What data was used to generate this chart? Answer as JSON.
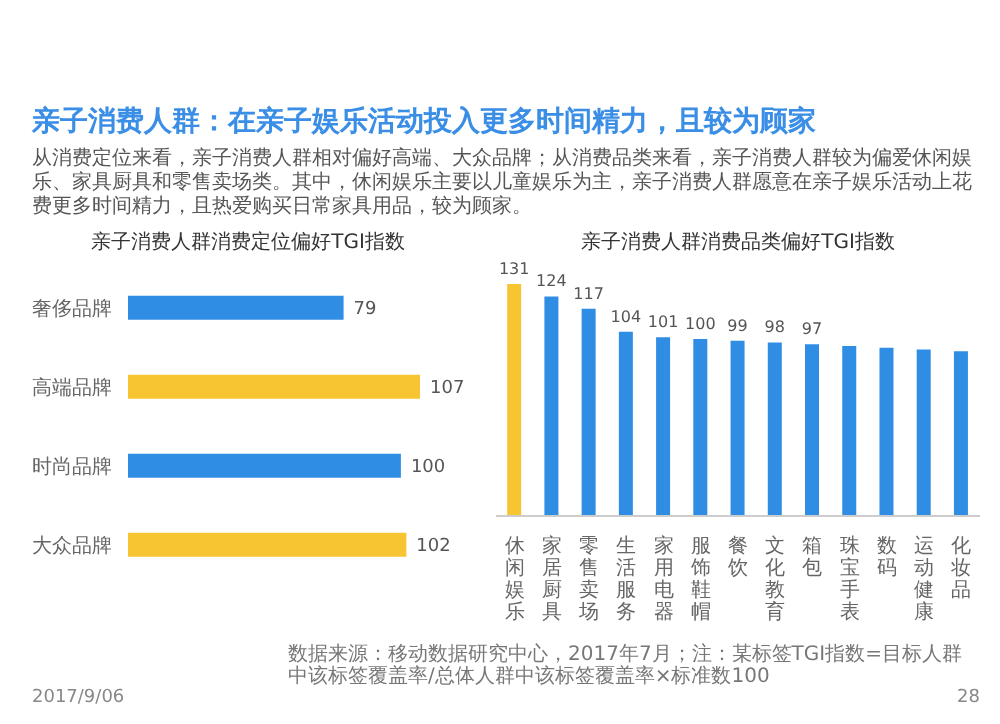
{
  "chart_data": [
    {
      "type": "other",
      "title": "亲子消费人群：在亲子娱乐活动投入更多时间精力，且较为顾家",
      "subtitle": "从消费定位来看，亲子消费人群相对偏好高端、大众品牌；从消费品类来看，亲子消费人群较为偏爱休闲娱乐、家具厨具和零售卖场类。其中，休闲娱乐主要以儿童娱乐为主，亲子消费人群愿意在亲子娱乐活动上花费更多时间精力，且热爱购买日常家具用品，较为顾家。",
      "annotations": [
        "2017/9/06",
        "28"
      ]
    },
    {
      "type": "bar",
      "orientation": "horizontal",
      "title": "亲子消费人群消费定位偏好TGI指数",
      "categories": [
        "奢侈品牌",
        "高端品牌",
        "时尚品牌",
        "大众品牌"
      ],
      "values": [
        79,
        107,
        100,
        102
      ],
      "colors": [
        "#2f8de4",
        "#f7c531",
        "#2f8de4",
        "#f7c531"
      ],
      "data_labels": true
    },
    {
      "type": "bar",
      "title": "亲子消费人群消费品类偏好TGI指数",
      "categories": [
        "休闲娱乐",
        "家居厨具",
        "零售卖场",
        "生活服务",
        "家用电器",
        "服饰鞋帽",
        "餐饮",
        "文化教育",
        "箱包",
        "珠宝手表",
        "数码",
        "运动健康",
        "化妆品"
      ],
      "values": [
        131,
        124,
        117,
        104,
        101,
        100,
        99,
        98,
        97,
        96,
        95,
        94,
        93
      ],
      "value_labels": [
        "131",
        "124",
        "117",
        "104",
        "101",
        "100",
        "99",
        "98",
        "97",
        null,
        null,
        null,
        null
      ],
      "colors": [
        "#f7c531",
        "#2f8de4",
        "#2f8de4",
        "#2f8de4",
        "#2f8de4",
        "#2f8de4",
        "#2f8de4",
        "#2f8de4",
        "#2f8de4",
        "#2f8de4",
        "#2f8de4",
        "#2f8de4",
        "#2f8de4"
      ],
      "annotations": [
        "数据来源：移动数据研究中心，2017年7月；注：某标签TGI指数=目标人群中该标签覆盖率/总体人群中该标签覆盖率×标准数100"
      ]
    }
  ]
}
